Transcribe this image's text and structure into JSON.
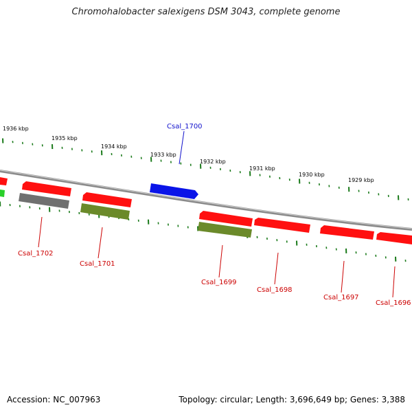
{
  "title": "Chromohalobacter salexigens DSM 3043, complete genome",
  "footer": {
    "accession": "Accession: NC_007963",
    "summary": "Topology: circular; Length: 3,696,649 bp; Genes: 3,388"
  },
  "colors": {
    "red": "#ff1010",
    "grey": "#707070",
    "olive": "#6b8a2a",
    "blue": "#0a14e8",
    "green": "#2ad02a",
    "tick": "#1a7a1a",
    "backbone": "#8a8a8a",
    "label_red": "#cc0000",
    "label_blue": "#1010cc"
  },
  "kbp_labels": [
    "1936 kbp",
    "1935 kbp",
    "1934 kbp",
    "1933 kbp",
    "1932 kbp",
    "1931 kbp",
    "1930 kbp",
    "1929 kbp"
  ],
  "genes": [
    {
      "name": "Csal_1702",
      "color": "grey"
    },
    {
      "name": "Csal_1701",
      "color": "olive"
    },
    {
      "name": "Csal_1700",
      "color": "blue"
    },
    {
      "name": "Csal_1699",
      "color": "olive"
    },
    {
      "name": "Csal_1698",
      "color": "red"
    },
    {
      "name": "Csal_1697",
      "color": "red"
    },
    {
      "name": "Csal_1696",
      "color": "red"
    }
  ]
}
